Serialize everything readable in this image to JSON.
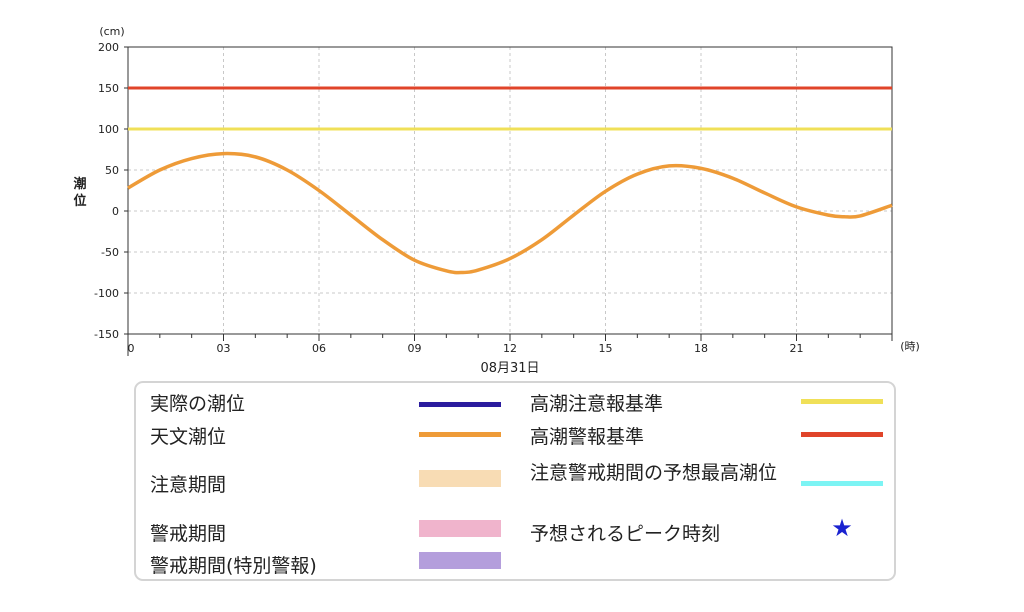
{
  "chart_data": {
    "type": "line",
    "y_unit": "(cm)",
    "ylabel": "潮位",
    "x_unit": "(時)",
    "date_label": "08月31日",
    "ylim": [
      -150,
      200
    ],
    "xlim": [
      0,
      24
    ],
    "y_ticks": [
      "200",
      "150",
      "100",
      "50",
      "0",
      "-50",
      "-100",
      "-150"
    ],
    "x_ticks": [
      "0",
      "03",
      "06",
      "09",
      "12",
      "15",
      "18",
      "21"
    ],
    "grid": true,
    "reference_lines": [
      {
        "name": "高潮警報基準",
        "value": 150,
        "color": "#e0442a"
      },
      {
        "name": "高潮注意報基準",
        "value": 100,
        "color": "#f0e058"
      }
    ],
    "series": [
      {
        "name": "天文潮位",
        "color": "#ee9b38",
        "x": [
          0,
          1,
          2,
          3,
          4,
          5,
          6,
          7,
          8,
          9,
          10,
          10.5,
          11,
          12,
          13,
          14,
          15,
          16,
          17,
          18,
          19,
          20,
          21,
          22,
          22.5,
          23,
          24
        ],
        "y": [
          28,
          50,
          64,
          70,
          66,
          50,
          25,
          -5,
          -35,
          -60,
          -73,
          -75,
          -72,
          -58,
          -35,
          -5,
          24,
          45,
          55,
          52,
          40,
          22,
          5,
          -5,
          -7,
          -6,
          7
        ]
      }
    ]
  },
  "legend": {
    "items": [
      {
        "label": "実際の潮位",
        "swatch": "line",
        "color": "#2b1c9e"
      },
      {
        "label": "天文潮位",
        "swatch": "line",
        "color": "#ee9b38"
      },
      {
        "label": "注意期間",
        "swatch": "box",
        "color": "#f8dcb4"
      },
      {
        "label": "警戒期間",
        "swatch": "box",
        "color": "#f0b4cc"
      },
      {
        "label": "警戒期間(特別警報)",
        "swatch": "box",
        "color": "#b49edc"
      },
      {
        "label": "高潮注意報基準",
        "swatch": "line",
        "color": "#f0e058"
      },
      {
        "label": "高潮警報基準",
        "swatch": "line",
        "color": "#e0442a"
      },
      {
        "label": "注意警戒期間の予想最高潮位",
        "swatch": "line",
        "color": "#7cf4f4"
      },
      {
        "label": "予想されるピーク時刻",
        "swatch": "star",
        "color": "#1a22d0",
        "symbol": "★"
      }
    ]
  }
}
